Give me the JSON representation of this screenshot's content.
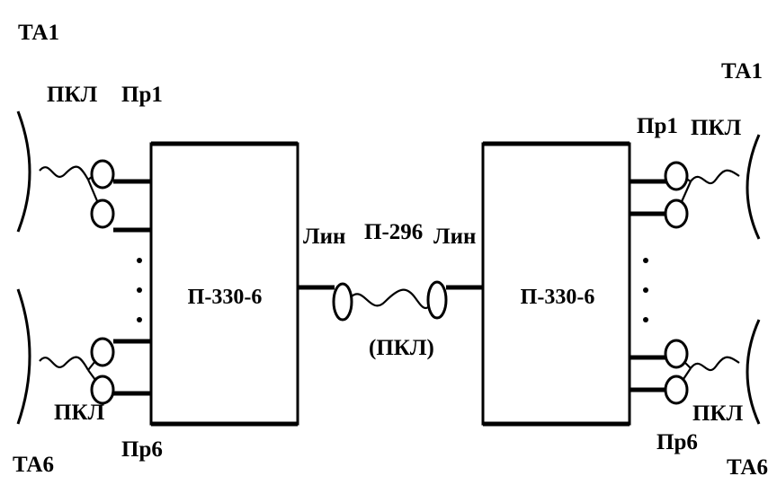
{
  "diagram": {
    "left_block": {
      "label": "П-330-6"
    },
    "right_block": {
      "label": "П-330-6"
    },
    "center": {
      "line_left": "Лин",
      "cable": "П-296",
      "line_right": "Лин",
      "cable_sub": "(ПКЛ)"
    },
    "left_side": {
      "ta_top": "ТА1",
      "pkl_top": "ПКЛ",
      "pr_top": "Пр1",
      "pkl_bottom": "ПКЛ",
      "ta_bottom": "ТА6",
      "pr_bottom": "Пр6"
    },
    "right_side": {
      "ta_top": "ТА1",
      "pr_top": "Пр1",
      "pkl_top": "ПКЛ",
      "pkl_bottom": "ПКЛ",
      "pr_bottom": "Пр6",
      "ta_bottom": "ТА6"
    }
  }
}
